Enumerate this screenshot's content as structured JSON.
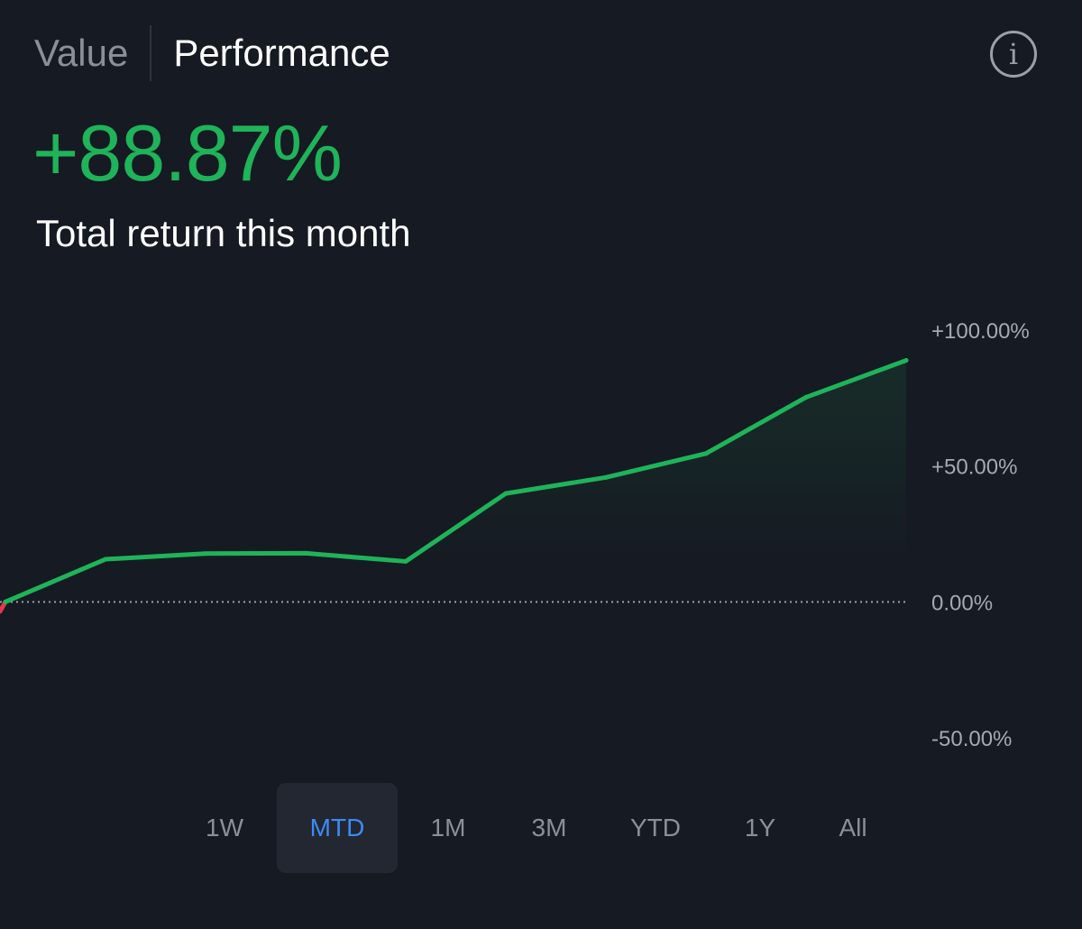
{
  "tabs": {
    "value_label": "Value",
    "performance_label": "Performance",
    "active": "Performance"
  },
  "info_icon": "info-icon",
  "headline": {
    "value": "+88.87%",
    "color": "#1fb35a"
  },
  "subtitle": "Total return this month",
  "chart_data": {
    "type": "area",
    "x": [
      0,
      1,
      2,
      3,
      4,
      5,
      6,
      7,
      8,
      9
    ],
    "y": [
      0.0,
      15.7,
      17.8,
      17.9,
      14.9,
      39.9,
      45.8,
      54.6,
      75.3,
      88.87
    ],
    "negative_lead": -3.5,
    "ylim": [
      -50,
      100
    ],
    "yticks": [
      "+100.00%",
      "+50.00%",
      "0.00%",
      "-50.00%"
    ],
    "ytick_values": [
      100,
      50,
      0,
      -50
    ],
    "baseline": 0,
    "line_color": "#1fb35a",
    "negative_color": "#e5374c",
    "grid": false
  },
  "ranges": [
    {
      "label": "1W",
      "selected": false
    },
    {
      "label": "MTD",
      "selected": true
    },
    {
      "label": "1M",
      "selected": false
    },
    {
      "label": "3M",
      "selected": false
    },
    {
      "label": "YTD",
      "selected": false
    },
    {
      "label": "1Y",
      "selected": false
    },
    {
      "label": "All",
      "selected": false
    }
  ],
  "colors": {
    "background": "#161a22",
    "accent": "#3d8bf2",
    "positive": "#1fb35a",
    "negative": "#e5374c"
  }
}
